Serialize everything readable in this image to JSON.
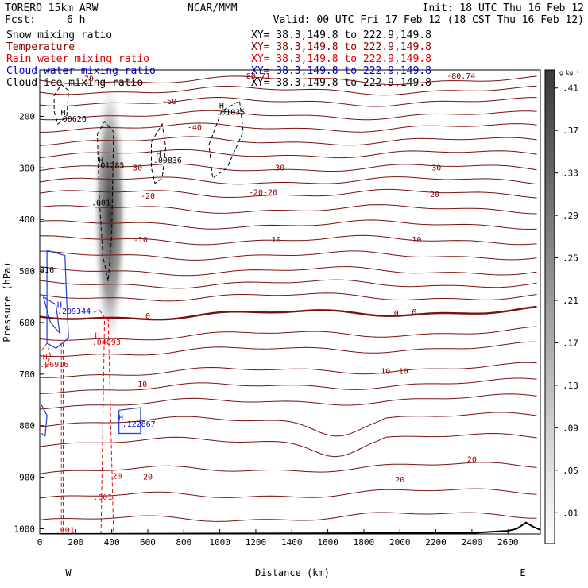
{
  "header": {
    "model": "TORERO  15km ARW",
    "org": "NCAR/MMM",
    "init": "Init: 18 UTC Thu 16 Feb 12",
    "fcst_label": "Fcst:",
    "fcst_value": "6 h",
    "valid": "Valid: 00 UTC Fri 17 Feb 12 (18 CST Thu 16 Feb 12)"
  },
  "legend": [
    {
      "label": "Snow mixing ratio",
      "xy": "XY=  38.3,149.8 to 222.9,149.8",
      "color": "#000000"
    },
    {
      "label": "Temperature",
      "xy": "XY=  38.3,149.8 to 222.9,149.8",
      "color": "#8b0000"
    },
    {
      "label": "Rain water mixing ratio",
      "xy": "XY=  38.3,149.8 to 222.9,149.8",
      "color": "#dd0000"
    },
    {
      "label": "Cloud water mixing ratio",
      "xy": "XY=  38.3,149.8 to 222.9,149.8",
      "color": "#0000cc"
    },
    {
      "label": "Cloud ice mixing ratio",
      "xy": "XY=  38.3,149.8 to 222.9,149.8",
      "color": "#000000"
    }
  ],
  "colorbar": {
    "unit": "g kg⁻¹",
    "ticks": [
      ".01",
      ".05",
      ".09",
      ".13",
      ".17",
      ".21",
      ".25",
      ".29",
      ".33",
      ".37",
      ".41"
    ],
    "vmin": 0.0,
    "vmax": 0.45
  },
  "chart_data": {
    "type": "contour",
    "xlabel": "Distance (km)",
    "ylabel": "Pressure (hPa)",
    "xlim": [
      0,
      2780
    ],
    "ylim": [
      1010,
      110
    ],
    "x_ticks": [
      0,
      200,
      400,
      600,
      800,
      1000,
      1200,
      1400,
      1600,
      1800,
      2000,
      2200,
      2400,
      2600
    ],
    "y_ticks": [
      200,
      300,
      400,
      500,
      600,
      700,
      800,
      900,
      1000
    ],
    "x_end_labels": {
      "left": "W",
      "right": "E"
    },
    "temperature_levels": [
      {
        "p": 130,
        "label": "-70",
        "label_x": 240
      },
      {
        "p": 150,
        "label": "",
        "label_x": null
      },
      {
        "p": 172,
        "label": "-60",
        "label_x": 720
      },
      {
        "p": 198,
        "label": "",
        "label_x": null
      },
      {
        "p": 222,
        "label": "-40",
        "label_x": 860
      },
      {
        "p": 248,
        "label": "",
        "label_x": null
      },
      {
        "p": 273,
        "label": "",
        "label_x": null
      },
      {
        "p": 300,
        "label": "-30",
        "label_x": 1320
      },
      {
        "p": 325,
        "label": "",
        "label_x": null
      },
      {
        "p": 350,
        "label": "-20",
        "label_x": 1240
      },
      {
        "p": 380,
        "label": "",
        "label_x": null
      },
      {
        "p": 410,
        "label": "",
        "label_x": null
      },
      {
        "p": 440,
        "label": "-10",
        "label_x": 1300
      },
      {
        "p": 470,
        "label": "",
        "label_x": null
      },
      {
        "p": 500,
        "label": "",
        "label_x": null
      },
      {
        "p": 525,
        "label": "",
        "label_x": null
      },
      {
        "p": 550,
        "label": "",
        "label_x": null
      },
      {
        "p": 590,
        "label": "0",
        "label_x": 1980
      },
      {
        "p": 630,
        "label": "",
        "label_x": null
      },
      {
        "p": 660,
        "label": "",
        "label_x": null
      },
      {
        "p": 700,
        "label": "10",
        "label_x": 1920
      },
      {
        "p": 730,
        "label": "",
        "label_x": null
      },
      {
        "p": 760,
        "label": "",
        "label_x": null
      },
      {
        "p": 795,
        "label": "",
        "label_x": null
      },
      {
        "p": 835,
        "label": "",
        "label_x": null
      },
      {
        "p": 890,
        "label": "20",
        "label_x": 1990
      },
      {
        "p": 940,
        "label": "",
        "label_x": null
      },
      {
        "p": 985,
        "label": "",
        "label_x": null
      }
    ],
    "labels_text": [
      {
        "text": "-70",
        "x": 260,
        "p": 128,
        "color": "#8b0000"
      },
      {
        "text": "-60",
        "x": 720,
        "p": 172,
        "color": "#8b0000"
      },
      {
        "text": "-40",
        "x": 860,
        "p": 222,
        "color": "#8b0000"
      },
      {
        "text": "-30",
        "x": 530,
        "p": 300,
        "color": "#8b0000"
      },
      {
        "text": "-30",
        "x": 1320,
        "p": 300,
        "color": "#8b0000"
      },
      {
        "text": "-30",
        "x": 2190,
        "p": 300,
        "color": "#8b0000"
      },
      {
        "text": "-20",
        "x": 600,
        "p": 355,
        "color": "#8b0000"
      },
      {
        "text": "-20",
        "x": 1200,
        "p": 348,
        "color": "#8b0000"
      },
      {
        "text": "-20",
        "x": 1280,
        "p": 348,
        "color": "#8b0000"
      },
      {
        "text": "-20",
        "x": 2180,
        "p": 352,
        "color": "#8b0000"
      },
      {
        "text": "-10",
        "x": 560,
        "p": 440,
        "color": "#8b0000"
      },
      {
        "text": "-10",
        "x": 1300,
        "p": 440,
        "color": "#8b0000"
      },
      {
        "text": "-10",
        "x": 2080,
        "p": 440,
        "color": "#8b0000"
      },
      {
        "text": "0",
        "x": 600,
        "p": 588,
        "color": "#8b0000"
      },
      {
        "text": "0",
        "x": 1980,
        "p": 582,
        "color": "#8b0000"
      },
      {
        "text": "0",
        "x": 2080,
        "p": 580,
        "color": "#8b0000"
      },
      {
        "text": "10",
        "x": 570,
        "p": 720,
        "color": "#8b0000"
      },
      {
        "text": "10",
        "x": 1920,
        "p": 695,
        "color": "#8b0000"
      },
      {
        "text": "10",
        "x": 2020,
        "p": 695,
        "color": "#8b0000"
      },
      {
        "text": "20",
        "x": 430,
        "p": 898,
        "color": "#8b0000"
      },
      {
        "text": "20",
        "x": 600,
        "p": 900,
        "color": "#8b0000"
      },
      {
        "text": "20",
        "x": 2000,
        "p": 905,
        "color": "#8b0000"
      },
      {
        "text": "20",
        "x": 2400,
        "p": 866,
        "color": "#8b0000"
      },
      {
        "text": "-80.74",
        "x": 2340,
        "p": 122,
        "color": "#8b0000"
      },
      {
        "text": "-80.71",
        "x": 1200,
        "p": 122,
        "color": "#8b0000"
      }
    ],
    "annotations": [
      {
        "text": "H",
        "x": 130,
        "p": 198,
        "color": "#000000"
      },
      {
        "text": ".00626",
        "x": 180,
        "p": 210,
        "color": "#000000"
      },
      {
        "text": "H",
        "x": 340,
        "p": 290,
        "color": "#000000"
      },
      {
        "text": ".01285",
        "x": 390,
        "p": 300,
        "color": "#000000"
      },
      {
        "text": ".001",
        "x": 340,
        "p": 373,
        "color": "#000000"
      },
      {
        "text": "H",
        "x": 660,
        "p": 278,
        "color": "#000000"
      },
      {
        "text": ".00836",
        "x": 710,
        "p": 290,
        "color": "#000000"
      },
      {
        "text": "H",
        "x": 1010,
        "p": 185,
        "color": "#000000"
      },
      {
        "text": ".01035",
        "x": 1060,
        "p": 197,
        "color": "#000000"
      },
      {
        "text": "H",
        "x": 110,
        "p": 570,
        "color": "#0000cc"
      },
      {
        "text": ".209344",
        "x": 190,
        "p": 583,
        "color": "#0000cc"
      },
      {
        "text": "816",
        "x": 40,
        "p": 503,
        "color": "#000000"
      },
      {
        "text": "H",
        "x": 320,
        "p": 630,
        "color": "#dd0000"
      },
      {
        "text": ".04093",
        "x": 370,
        "p": 643,
        "color": "#dd0000"
      },
      {
        "text": "H",
        "x": 30,
        "p": 672,
        "color": "#dd0000"
      },
      {
        "text": ".06916",
        "x": 80,
        "p": 686,
        "color": "#dd0000"
      },
      {
        "text": "H",
        "x": 450,
        "p": 790,
        "color": "#0000cc"
      },
      {
        "text": ".122867",
        "x": 550,
        "p": 802,
        "color": "#0000cc"
      },
      {
        "text": ".001",
        "x": 350,
        "p": 944,
        "color": "#dd0000"
      },
      {
        "text": ".001",
        "x": 140,
        "p": 1008,
        "color": "#dd0000"
      }
    ],
    "snow_max": {
      "x": 390,
      "p": 420,
      "value": 0.41
    }
  }
}
